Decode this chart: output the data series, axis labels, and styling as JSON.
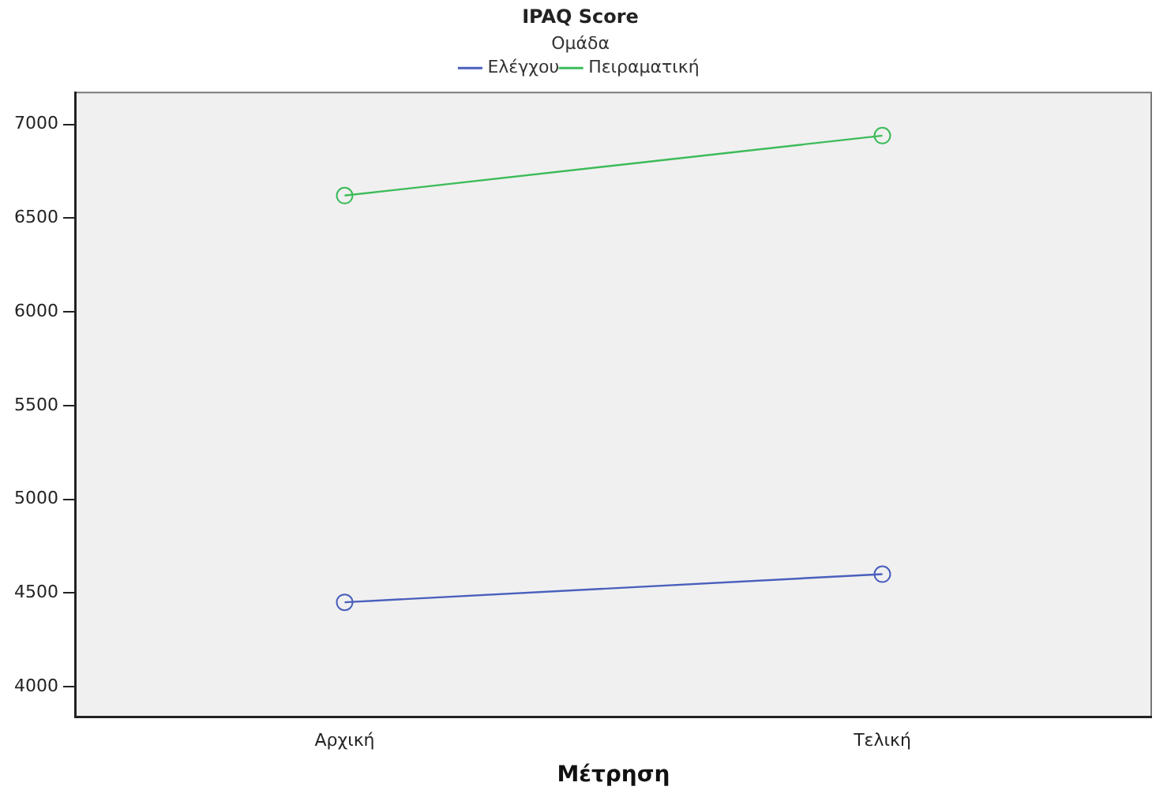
{
  "chart_data": {
    "type": "line",
    "title": "IPAQ Score",
    "xlabel": "Μέτρηση",
    "legend_title": "Ομάδα",
    "categories": [
      "Αρχική",
      "Τελική"
    ],
    "series": [
      {
        "name": "Ελέγχου",
        "color": "#4a5fbd",
        "values": [
          4450,
          4600
        ]
      },
      {
        "name": "Πειραματική",
        "color": "#3dbb5a",
        "values": [
          6620,
          6940
        ]
      }
    ],
    "ylim": [
      3840,
      7170
    ],
    "yticks": [
      4000,
      4500,
      5000,
      5500,
      6000,
      6500,
      7000
    ],
    "grid": false,
    "legend": "top right",
    "marker": "circle",
    "line_style": "solid"
  }
}
